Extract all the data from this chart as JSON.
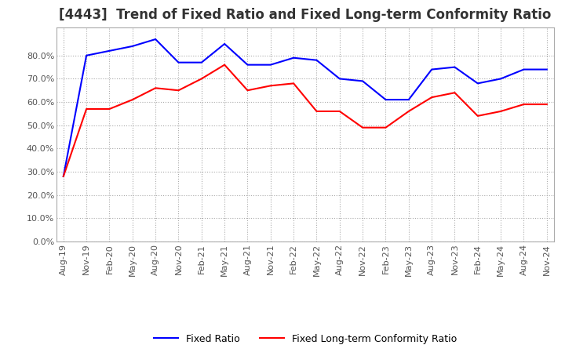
{
  "title": "[4443]  Trend of Fixed Ratio and Fixed Long-term Conformity Ratio",
  "fixed_ratio": {
    "label": "Fixed Ratio",
    "color": "#0000FF",
    "values": [
      0.28,
      0.8,
      0.82,
      0.84,
      0.87,
      0.77,
      0.77,
      0.85,
      0.76,
      0.76,
      0.79,
      0.78,
      0.7,
      0.69,
      0.61,
      0.61,
      0.74,
      0.75,
      0.68,
      0.7,
      0.74,
      0.74
    ]
  },
  "fixed_lt_ratio": {
    "label": "Fixed Long-term Conformity Ratio",
    "color": "#FF0000",
    "values": [
      0.28,
      0.57,
      0.57,
      0.61,
      0.66,
      0.65,
      0.7,
      0.76,
      0.65,
      0.67,
      0.68,
      0.56,
      0.56,
      0.49,
      0.49,
      0.56,
      0.62,
      0.64,
      0.54,
      0.56,
      0.59,
      0.59
    ]
  },
  "x_labels": [
    "Aug-19",
    "Nov-19",
    "Feb-20",
    "May-20",
    "Aug-20",
    "Nov-20",
    "Feb-21",
    "May-21",
    "Aug-21",
    "Nov-21",
    "Feb-22",
    "May-22",
    "Aug-22",
    "Nov-22",
    "Feb-23",
    "May-23",
    "Aug-23",
    "Nov-23",
    "Feb-24",
    "May-24",
    "Aug-24",
    "Nov-24"
  ],
  "ylim": [
    0.0,
    0.92
  ],
  "yticks": [
    0.0,
    0.1,
    0.2,
    0.3,
    0.4,
    0.5,
    0.6,
    0.7,
    0.8
  ],
  "background_color": "#FFFFFF",
  "grid_color": "#AAAAAA",
  "title_fontsize": 12,
  "axis_fontsize": 8,
  "legend_fontsize": 9
}
